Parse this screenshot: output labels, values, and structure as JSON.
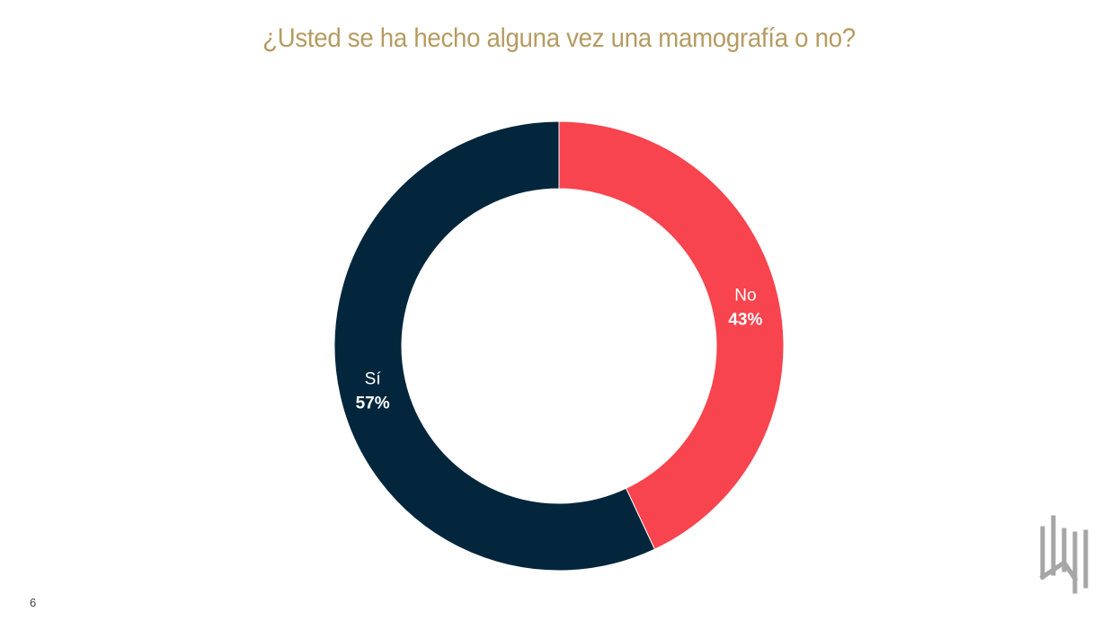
{
  "chart_data": {
    "type": "pie",
    "variant": "donut",
    "title": "¿Usted se ha hecho alguna vez una mamografía o no?",
    "categories": [
      "No",
      "Sí"
    ],
    "values": [
      43,
      57
    ],
    "value_labels": [
      "43%",
      "57%"
    ],
    "colors": [
      "#f7444e",
      "#03263c"
    ],
    "legend": "none"
  },
  "page": {
    "number": "6"
  },
  "logo": {
    "icon": "brand-logo-icon",
    "color": "#a6a6a6"
  }
}
